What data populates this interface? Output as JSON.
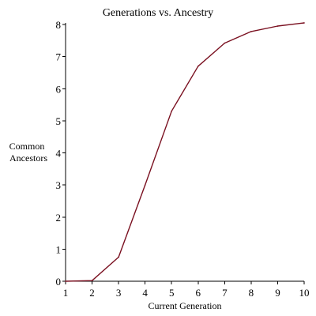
{
  "chart_data": {
    "type": "line",
    "title": "Generations vs. Ancestry",
    "xlabel": "Current Generation",
    "ylabel_lines": [
      "Common",
      "Ancestors"
    ],
    "xlim": [
      1,
      10
    ],
    "ylim": [
      0,
      8
    ],
    "xticks": [
      1,
      2,
      3,
      4,
      5,
      6,
      7,
      8,
      9,
      10
    ],
    "yticks": [
      0,
      1,
      2,
      3,
      4,
      5,
      6,
      7,
      8
    ],
    "grid": false,
    "legend": "none",
    "series": [
      {
        "color": "#7a1020",
        "x": [
          1,
          2,
          3,
          4,
          5,
          6,
          7,
          8,
          9,
          10
        ],
        "y": [
          0,
          0.02,
          0.75,
          3.0,
          5.3,
          6.7,
          7.42,
          7.78,
          7.95,
          8.05
        ]
      }
    ]
  }
}
